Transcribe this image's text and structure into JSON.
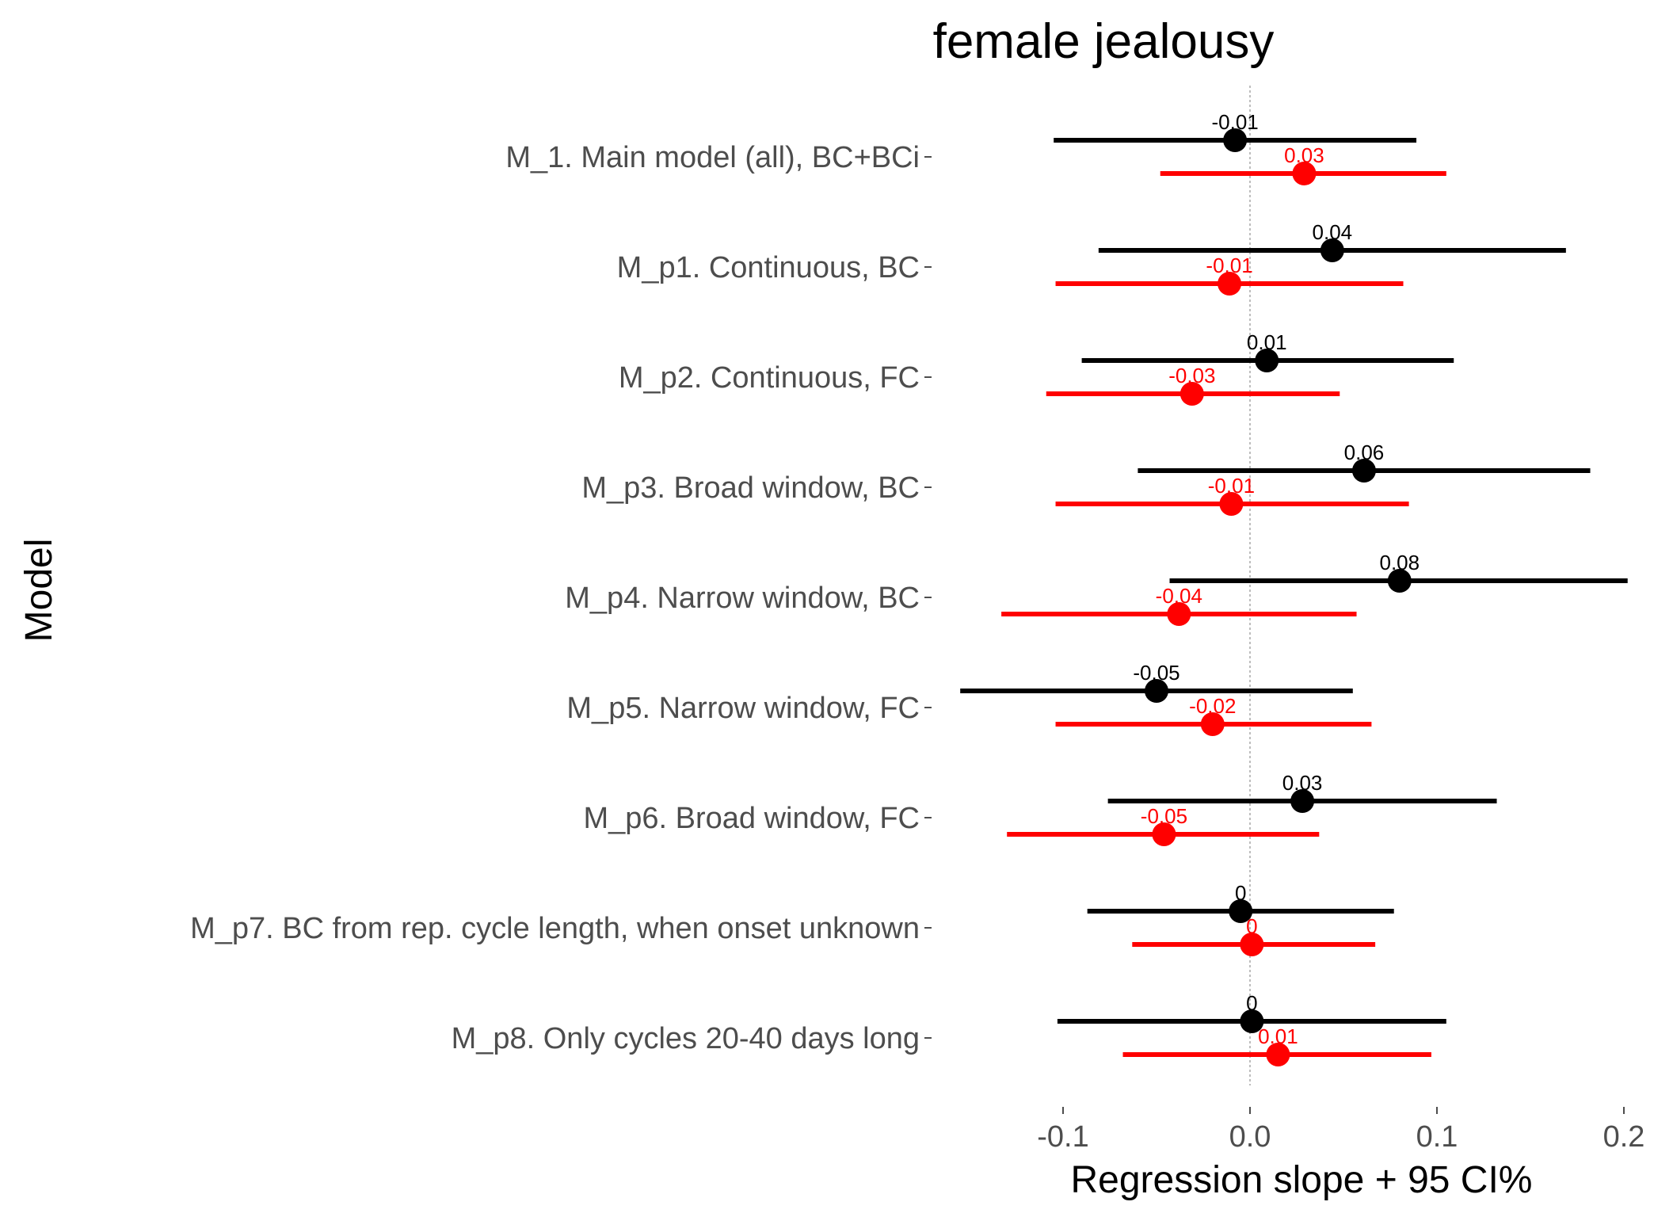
{
  "chart_data": {
    "type": "dot-whisker",
    "title": "female jealousy",
    "xlabel": "Regression slope + 95 CI%",
    "ylabel": "Model",
    "xlim": [
      -0.175,
      0.21
    ],
    "xticks": [
      -0.1,
      0.0,
      0.1,
      0.2
    ],
    "xtick_labels": [
      "-0.1",
      "0.0",
      "0.1",
      "0.2"
    ],
    "reference_line": 0,
    "grid": false,
    "legend": "none",
    "categories": [
      "M_1. Main model (all), BC+BCi",
      "M_p1. Continuous, BC",
      "M_p2. Continuous, FC",
      "M_p3. Broad window, BC",
      "M_p4. Narrow window, BC",
      "M_p5. Narrow window, FC",
      "M_p6. Broad window, FC",
      "M_p7. BC from rep. cycle length, when onset unknown",
      "M_p8. Only cycles 20-40 days long"
    ],
    "series": [
      {
        "color": "#000000",
        "estimates": [
          -0.008,
          0.044,
          0.009,
          0.061,
          0.08,
          -0.05,
          0.028,
          -0.005,
          0.001
        ],
        "ci_low": [
          -0.105,
          -0.081,
          -0.09,
          -0.06,
          -0.043,
          -0.155,
          -0.076,
          -0.087,
          -0.103
        ],
        "ci_high": [
          0.089,
          0.169,
          0.109,
          0.182,
          0.202,
          0.055,
          0.132,
          0.077,
          0.105
        ],
        "labels": [
          "-0.01",
          "0.04",
          "0.01",
          "0.06",
          "0.08",
          "-0.05",
          "0.03",
          "0",
          "0"
        ]
      },
      {
        "color": "#ff0000",
        "estimates": [
          0.029,
          -0.011,
          -0.031,
          -0.01,
          -0.038,
          -0.02,
          -0.046,
          0.001,
          0.015
        ],
        "ci_low": [
          -0.048,
          -0.104,
          -0.109,
          -0.104,
          -0.133,
          -0.104,
          -0.13,
          -0.063,
          -0.068
        ],
        "ci_high": [
          0.105,
          0.082,
          0.048,
          0.085,
          0.057,
          0.065,
          0.037,
          0.067,
          0.097
        ],
        "labels": [
          "0.03",
          "-0.01",
          "-0.03",
          "-0.01",
          "-0.04",
          "-0.02",
          "-0.05",
          "0",
          "0.01"
        ]
      }
    ]
  }
}
